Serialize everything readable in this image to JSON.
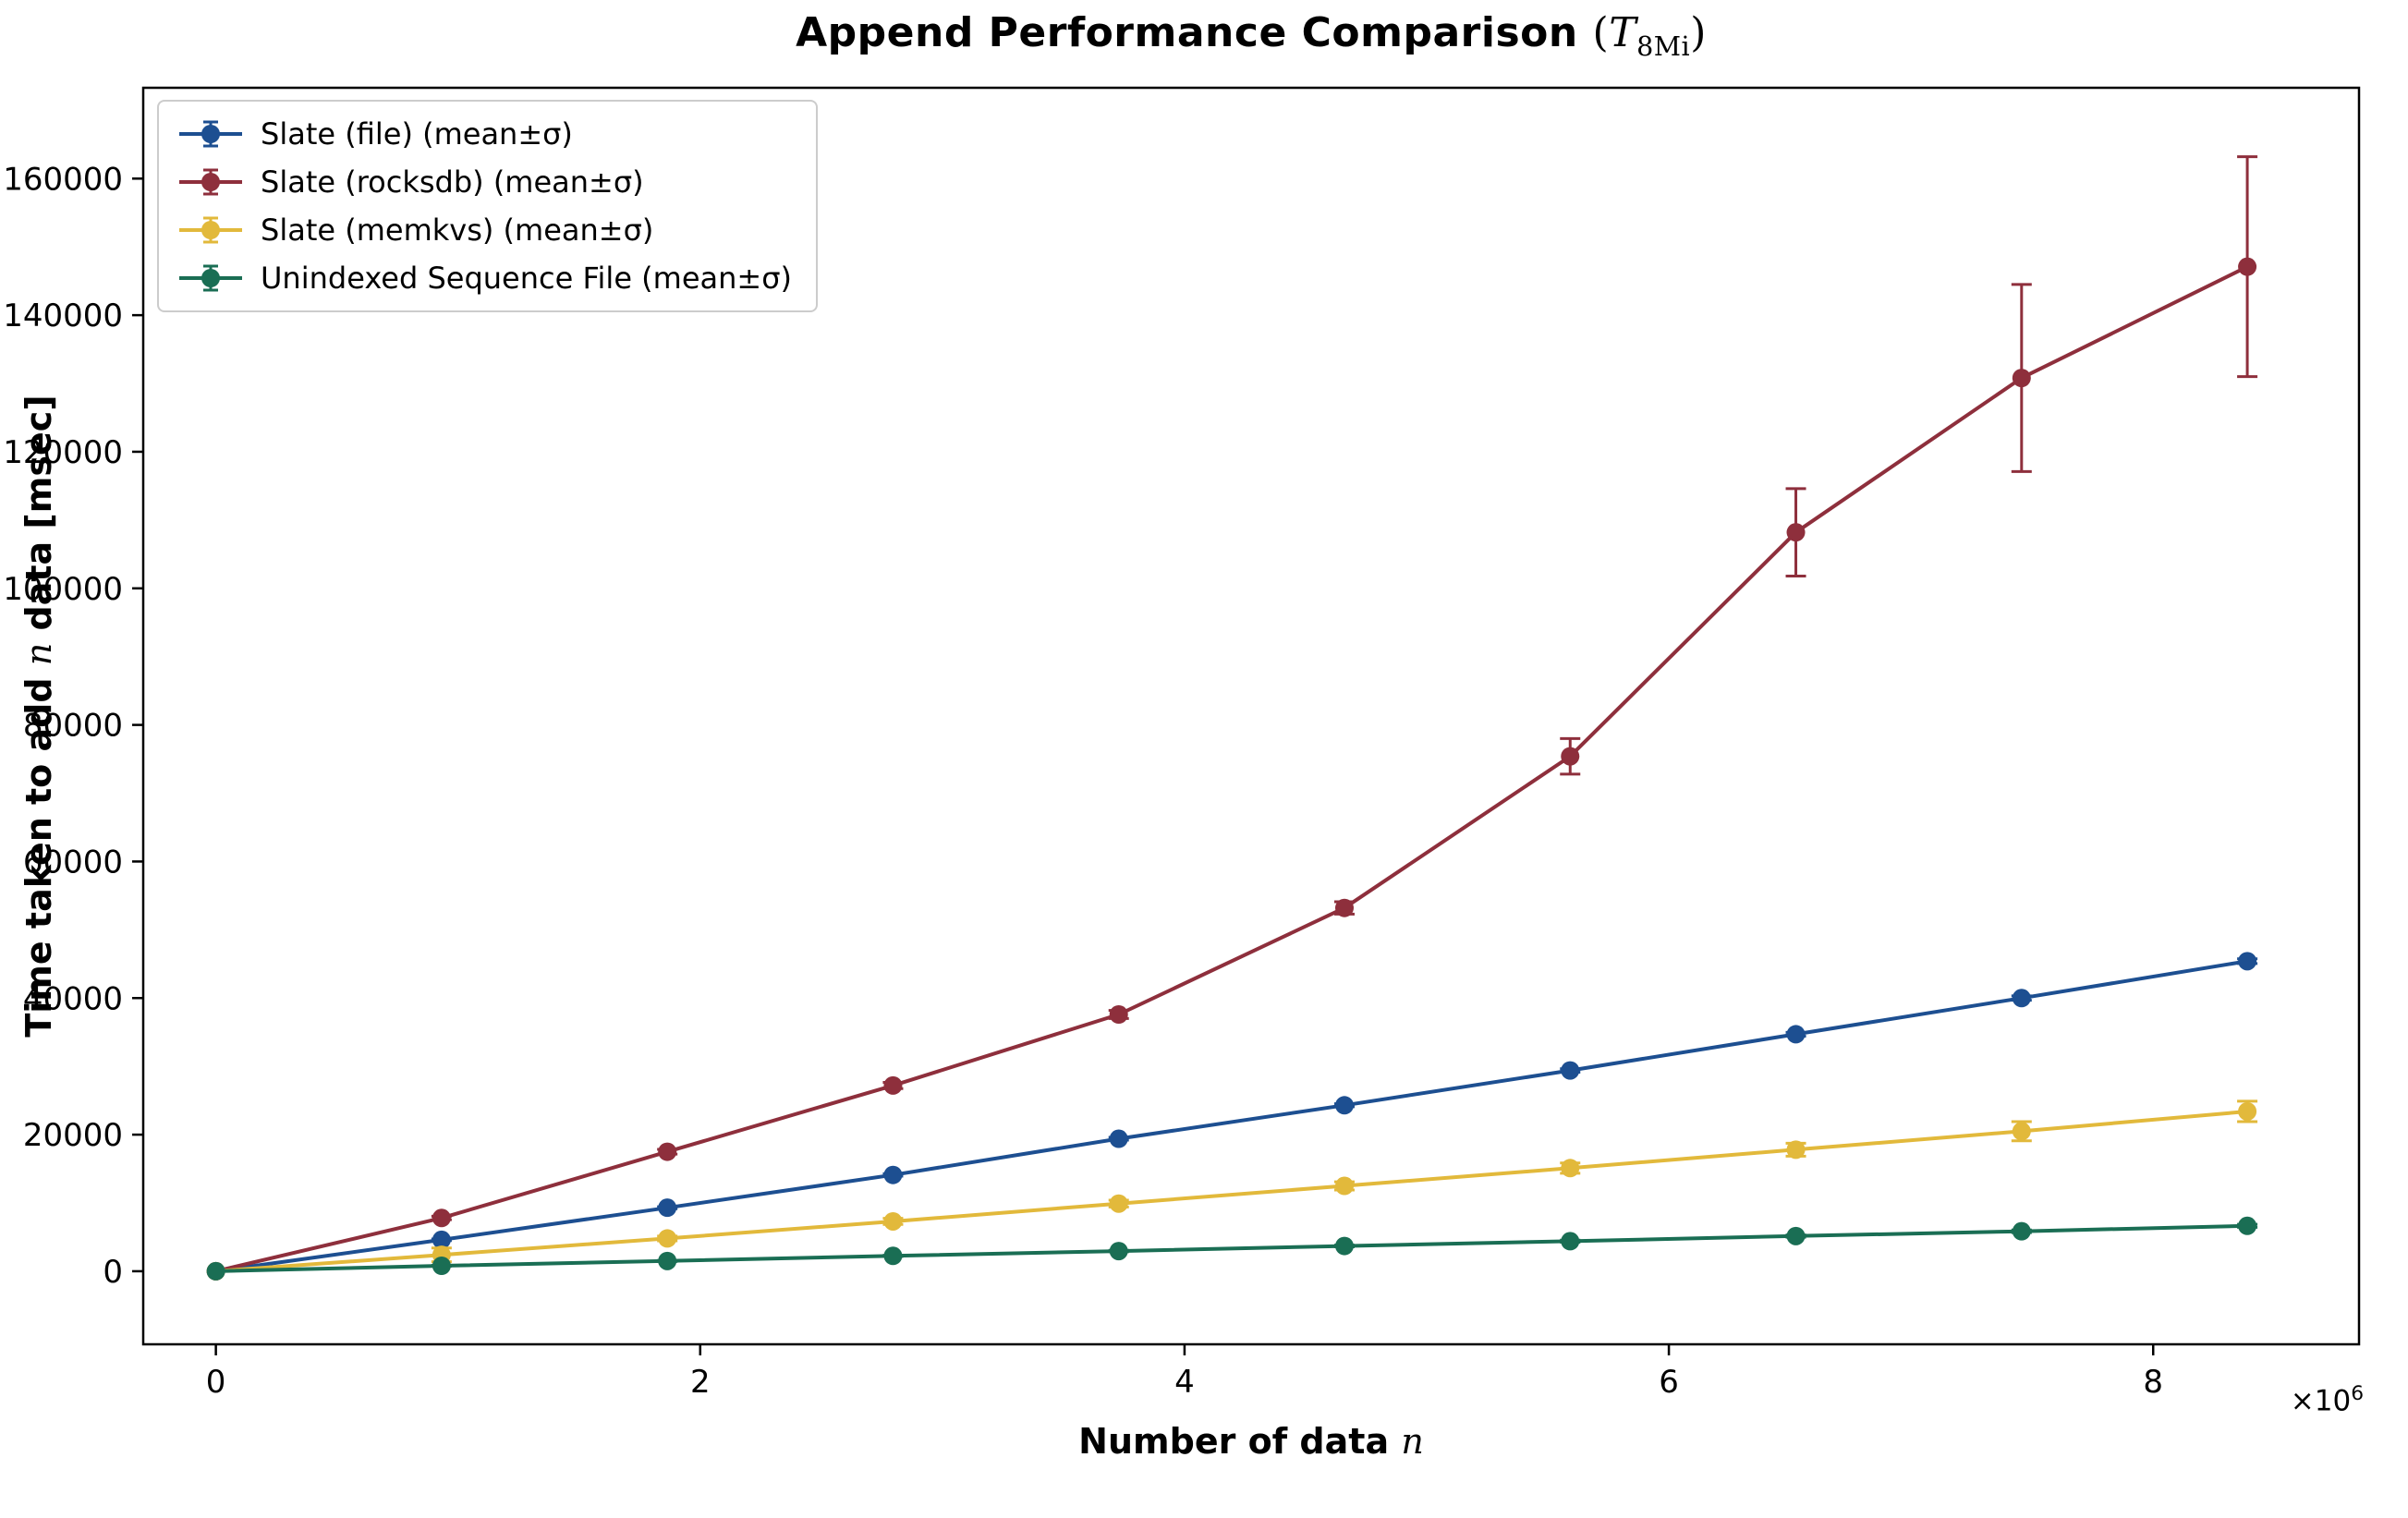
{
  "title": {
    "main": "Append Performance Comparison",
    "open": "(",
    "symbol": "T",
    "subscript": "8Mi",
    "close": ")"
  },
  "axes": {
    "xlabel_pre": "Number of data ",
    "xlabel_var": "n",
    "ylabel_pre": "Time taken to add ",
    "ylabel_var": "n",
    "ylabel_post": " data [msec]",
    "x_offset_base": "×10",
    "x_offset_exp": "6"
  },
  "chart_data": {
    "type": "line",
    "title": "Append Performance Comparison (T_8Mi)",
    "xlabel": "Number of data n",
    "ylabel": "Time taken to add n data [msec]",
    "grid": false,
    "legend_position": "upper left",
    "x_scale_offset": "1e6",
    "xlim": [
      -300000,
      8850000
    ],
    "ylim": [
      -10700,
      173300
    ],
    "xticks": {
      "values": [
        0,
        2000000,
        4000000,
        6000000,
        8000000
      ],
      "labels": [
        "0",
        "2",
        "4",
        "6",
        "8"
      ]
    },
    "yticks": {
      "values": [
        0,
        20000,
        40000,
        60000,
        80000,
        100000,
        120000,
        140000,
        160000
      ],
      "labels": [
        "0",
        "20000",
        "40000",
        "60000",
        "80000",
        "100000",
        "120000",
        "140000",
        "160000"
      ]
    },
    "x": [
      0,
      932068,
      1864136,
      2796203,
      3728271,
      4660338,
      5592406,
      6524473,
      7456541,
      8388608
    ],
    "series": [
      {
        "id": "slate-file",
        "label": "Slate (file) (mean±σ)",
        "color": "#1d4f91",
        "mean": [
          0,
          4600,
          9300,
          14100,
          19400,
          24300,
          29400,
          34700,
          40000,
          45400
        ],
        "sigma": [
          0,
          120,
          150,
          180,
          200,
          220,
          250,
          280,
          320,
          350
        ]
      },
      {
        "id": "slate-rocksdb",
        "label": "Slate (rocksdb) (mean±σ)",
        "color": "#8e2f3c",
        "mean": [
          0,
          7800,
          17500,
          27200,
          37600,
          53200,
          75400,
          108200,
          130800,
          147100
        ],
        "sigma": [
          0,
          250,
          350,
          450,
          600,
          900,
          2600,
          6400,
          13700,
          16100
        ]
      },
      {
        "id": "slate-memkvs",
        "label": "Slate (memkvs) (mean±σ)",
        "color": "#e2b93b",
        "mean": [
          0,
          2400,
          4800,
          7300,
          9900,
          12500,
          15100,
          17800,
          20500,
          23400
        ],
        "sigma": [
          0,
          1000,
          350,
          450,
          500,
          600,
          750,
          950,
          1400,
          1500
        ]
      },
      {
        "id": "unindexed-sequence-file",
        "label": "Unindexed Sequence File (mean±σ)",
        "color": "#1a6e54",
        "mean": [
          0,
          800,
          1500,
          2250,
          2950,
          3700,
          4400,
          5150,
          5850,
          6650
        ],
        "sigma": [
          0,
          60,
          70,
          90,
          110,
          130,
          150,
          170,
          200,
          220
        ]
      }
    ]
  }
}
